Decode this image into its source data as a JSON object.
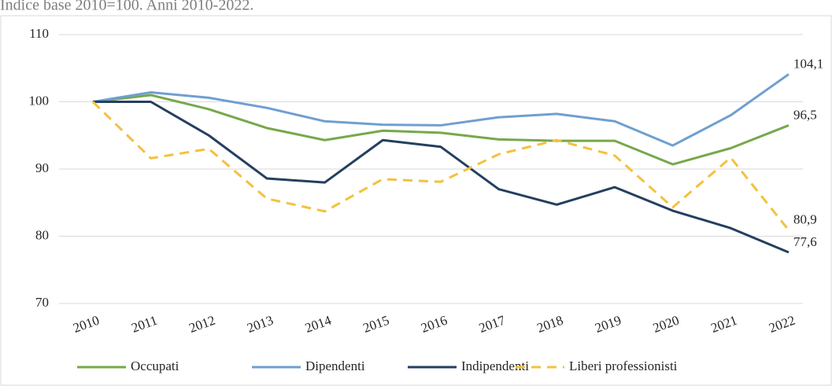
{
  "chart_data": {
    "type": "line",
    "subtitle": "Indice base 2010=100. Anni 2010-2022.",
    "categories": [
      "2010",
      "2011",
      "2012",
      "2013",
      "2014",
      "2015",
      "2016",
      "2017",
      "2018",
      "2019",
      "2020",
      "2021",
      "2022"
    ],
    "series": [
      {
        "name": "Occupati",
        "color": "#77a84a",
        "dashed": false,
        "values": [
          100,
          101.0,
          98.9,
          96.1,
          94.3,
          95.7,
          95.4,
          94.4,
          94.2,
          94.2,
          90.7,
          93.1,
          96.5
        ],
        "value_labels": [
          null,
          null,
          null,
          null,
          null,
          null,
          null,
          null,
          null,
          null,
          null,
          null,
          "96,5"
        ]
      },
      {
        "name": "Dipendenti",
        "color": "#6f9fd0",
        "dashed": false,
        "values": [
          100,
          101.4,
          100.6,
          99.1,
          97.1,
          96.6,
          96.5,
          97.7,
          98.2,
          97.1,
          93.5,
          98.0,
          104.1
        ],
        "value_labels": [
          null,
          null,
          null,
          null,
          null,
          null,
          null,
          null,
          null,
          null,
          null,
          null,
          "104,1"
        ]
      },
      {
        "name": "Indipendenti",
        "color": "#243f60",
        "dashed": false,
        "values": [
          100,
          100,
          95.0,
          88.6,
          88.0,
          94.3,
          93.3,
          87.0,
          84.7,
          87.3,
          83.8,
          81.2,
          77.6
        ],
        "value_labels": [
          null,
          null,
          null,
          null,
          null,
          null,
          null,
          null,
          null,
          null,
          null,
          null,
          "77,6"
        ]
      },
      {
        "name": "Liberi professionisti",
        "color": "#f4c13e",
        "dashed": true,
        "values": [
          100,
          91.6,
          93.0,
          85.6,
          83.7,
          88.5,
          88.1,
          92.2,
          94.3,
          92.0,
          84.3,
          91.7,
          80.9
        ],
        "value_labels": [
          null,
          null,
          null,
          null,
          null,
          null,
          null,
          null,
          null,
          null,
          null,
          null,
          "80,9"
        ]
      }
    ],
    "ylim": [
      70,
      110
    ],
    "yticks": [
      70,
      80,
      90,
      100,
      110
    ],
    "grid": true,
    "legend": "bottom"
  }
}
